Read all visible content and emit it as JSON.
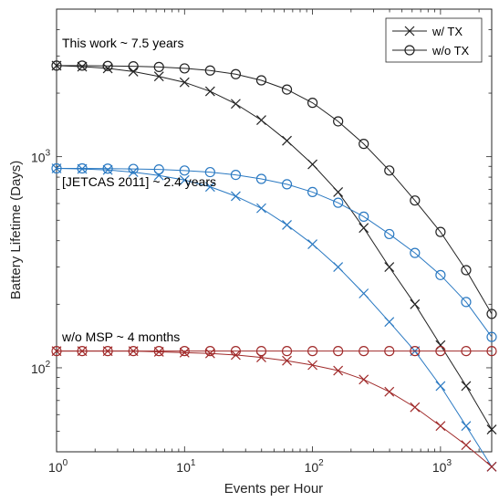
{
  "chart_data": {
    "type": "line",
    "xlabel": "Events per Hour",
    "ylabel": "Battery Lifetime (Days)",
    "xscale": "log",
    "yscale": "log",
    "xlim": [
      1,
      2512
    ],
    "ylim": [
      40,
      5000
    ],
    "grid": false,
    "legend_position": "top-right",
    "legend": [
      {
        "label": "w/ TX",
        "marker": "x"
      },
      {
        "label": "w/o TX",
        "marker": "o"
      }
    ],
    "x": [
      1,
      1.585,
      2.512,
      3.981,
      6.31,
      10,
      15.85,
      25.12,
      39.81,
      63.1,
      100,
      158.5,
      251.2,
      398.1,
      631,
      1000,
      1585,
      2512
    ],
    "series": [
      {
        "group": "This work",
        "color": "#222222",
        "marker": "x",
        "values": [
          2700,
          2670,
          2620,
          2530,
          2400,
          2250,
          2040,
          1780,
          1490,
          1190,
          920,
          680,
          460,
          300,
          200,
          128,
          82,
          51
        ]
      },
      {
        "group": "This work",
        "color": "#222222",
        "marker": "o",
        "values": [
          2700,
          2700,
          2690,
          2680,
          2660,
          2620,
          2560,
          2460,
          2300,
          2080,
          1800,
          1470,
          1150,
          860,
          620,
          440,
          290,
          180
        ]
      },
      {
        "group": "JETCAS 2011",
        "color": "#2a79c2",
        "marker": "x",
        "values": [
          880,
          875,
          865,
          845,
          815,
          775,
          720,
          650,
          570,
          475,
          385,
          300,
          225,
          165,
          120,
          82,
          53,
          34
        ]
      },
      {
        "group": "JETCAS 2011",
        "color": "#2a79c2",
        "marker": "o",
        "values": [
          880,
          880,
          878,
          875,
          870,
          860,
          845,
          820,
          785,
          740,
          680,
          605,
          520,
          430,
          350,
          275,
          205,
          140
        ]
      },
      {
        "group": "w/o MSP",
        "color": "#a02a2a",
        "marker": "x",
        "values": [
          120,
          120,
          120,
          120,
          119,
          118,
          117,
          115,
          112,
          108,
          103,
          97,
          88,
          77,
          65,
          53,
          43,
          34
        ]
      },
      {
        "group": "w/o MSP",
        "color": "#a02a2a",
        "marker": "o",
        "values": [
          120,
          120,
          120,
          120,
          120,
          120,
          120,
          120,
          120,
          120,
          120,
          120,
          120,
          120,
          120,
          120,
          120,
          120
        ]
      }
    ],
    "annotations": [
      {
        "text": "This work ~ 7.5 years"
      },
      {
        "text": "[JETCAS 2011] ~ 2.4 years"
      },
      {
        "text": "w/o MSP ~ 4 months"
      }
    ],
    "x_ticks": [
      {
        "value": 1,
        "base": "10",
        "exp": "0"
      },
      {
        "value": 10,
        "base": "10",
        "exp": "1"
      },
      {
        "value": 100,
        "base": "10",
        "exp": "2"
      },
      {
        "value": 1000,
        "base": "10",
        "exp": "3"
      }
    ],
    "y_ticks": [
      {
        "value": 100,
        "base": "10",
        "exp": "2"
      },
      {
        "value": 1000,
        "base": "10",
        "exp": "3"
      }
    ]
  }
}
